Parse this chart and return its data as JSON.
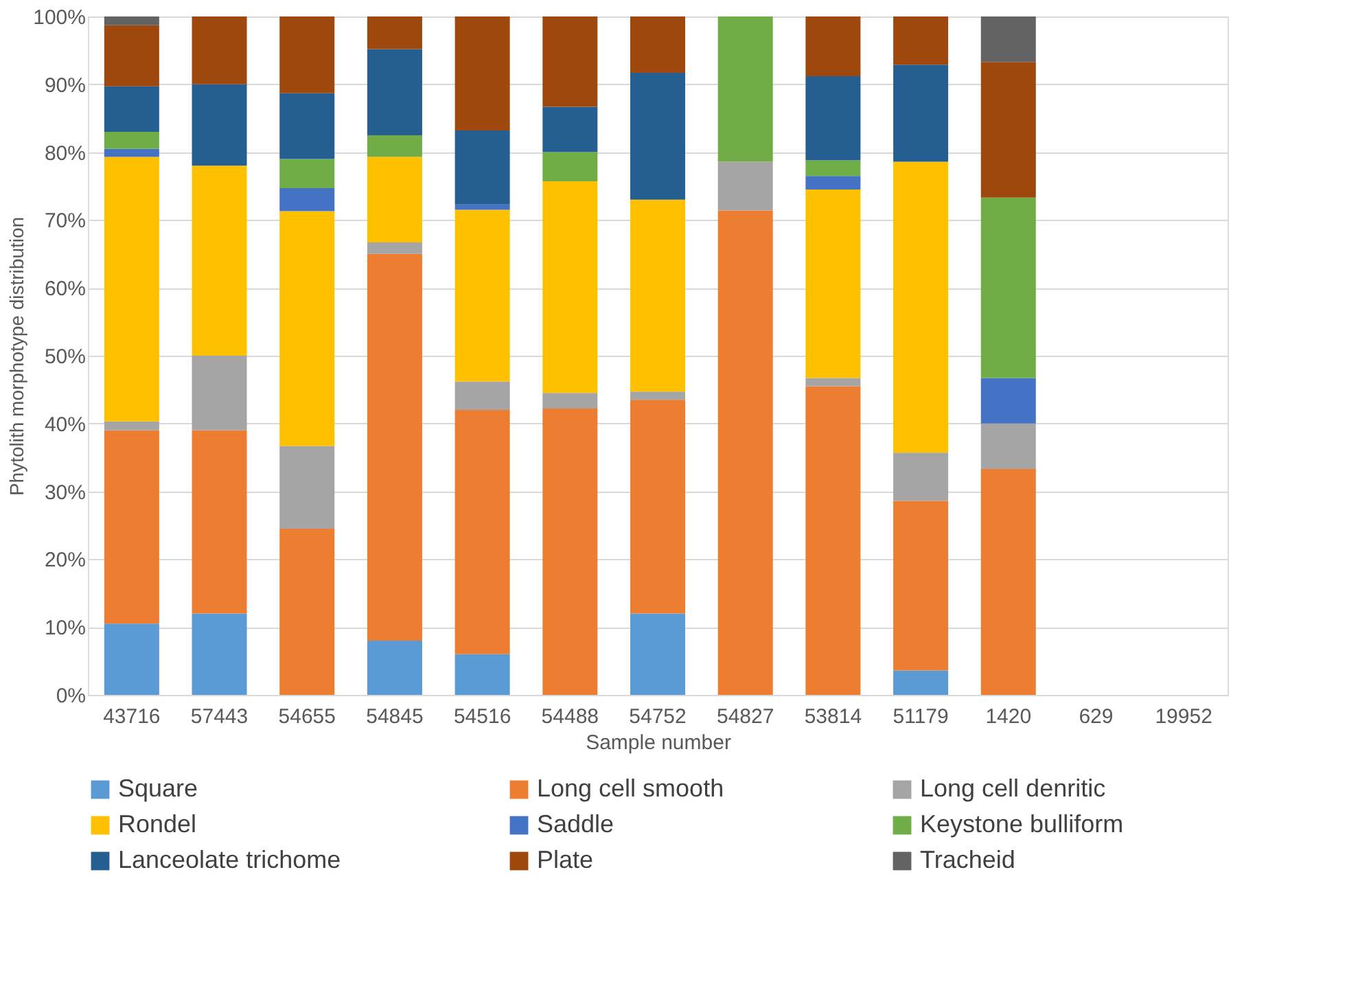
{
  "chart_data": {
    "type": "bar",
    "stacked": true,
    "xlabel": "Sample number",
    "ylabel": "Phytolith morphotype distribution",
    "categories": [
      "43716",
      "57443",
      "54655",
      "54845",
      "54516",
      "54488",
      "54752",
      "54827",
      "53814",
      "51179",
      "1420",
      "629",
      "19952"
    ],
    "ylim": [
      0,
      100
    ],
    "yticks": [
      {
        "value": 0,
        "label": "0%"
      },
      {
        "value": 10,
        "label": "10%"
      },
      {
        "value": 20,
        "label": "20%"
      },
      {
        "value": 30,
        "label": "30%"
      },
      {
        "value": 40,
        "label": "40%"
      },
      {
        "value": 50,
        "label": "50%"
      },
      {
        "value": 60,
        "label": "60%"
      },
      {
        "value": 70,
        "label": "70%"
      },
      {
        "value": 80,
        "label": "80%"
      },
      {
        "value": 90,
        "label": "90%"
      },
      {
        "value": 100,
        "label": "100%"
      }
    ],
    "grid": "y",
    "legend": "bottom",
    "series": [
      {
        "name": "Square",
        "color": "#5b9bd5",
        "values": [
          10.5,
          12,
          null,
          8,
          6,
          null,
          12,
          null,
          null,
          3.6,
          null,
          null,
          null
        ]
      },
      {
        "name": "Long cell smooth",
        "color": "#ed7d31",
        "values": [
          28.5,
          27,
          24.5,
          57,
          36,
          42.2,
          31.5,
          71.4,
          45.5,
          25,
          33.3,
          null,
          null
        ]
      },
      {
        "name": "Long cell denritic",
        "color": "#a5a5a5",
        "values": [
          1.3,
          11,
          12.2,
          1.7,
          4.2,
          2.3,
          1.2,
          7.2,
          1.2,
          7.1,
          6.7,
          null,
          null
        ]
      },
      {
        "name": "Rondel",
        "color": "#ffc000",
        "values": [
          39,
          28,
          34.6,
          12.6,
          25.3,
          31.2,
          28.3,
          null,
          27.8,
          42.9,
          null,
          null,
          null
        ]
      },
      {
        "name": "Saddle",
        "color": "#4472c4",
        "values": [
          1.2,
          null,
          3.4,
          null,
          0.8,
          null,
          null,
          null,
          2,
          null,
          6.7,
          null,
          null
        ]
      },
      {
        "name": "Keystone bulliform",
        "color": "#70ad47",
        "values": [
          2.5,
          null,
          4.3,
          3.2,
          null,
          4.3,
          null,
          21.4,
          2.3,
          null,
          26.6,
          null,
          null
        ]
      },
      {
        "name": "Lanceolate trichome",
        "color": "#255e91",
        "values": [
          6.7,
          12,
          9.7,
          12.7,
          10.9,
          6.7,
          18.7,
          null,
          12.4,
          14.3,
          null,
          null,
          null
        ]
      },
      {
        "name": "Plate",
        "color": "#9e480e",
        "values": [
          9,
          10,
          11.3,
          4.8,
          16.8,
          13.3,
          8.3,
          null,
          8.8,
          7.1,
          20,
          null,
          null
        ]
      },
      {
        "name": "Tracheid",
        "color": "#636363",
        "values": [
          1.3,
          null,
          null,
          null,
          null,
          null,
          null,
          null,
          null,
          null,
          6.7,
          null,
          null
        ]
      }
    ]
  }
}
